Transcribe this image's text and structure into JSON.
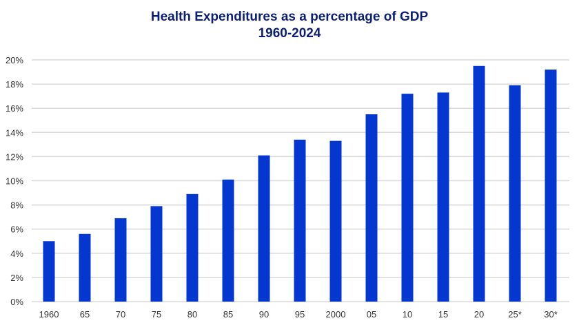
{
  "chart_data": {
    "type": "bar",
    "title": "Health Expenditures as a percentage of GDP",
    "subtitle": "1960-2024",
    "xlabel": "",
    "ylabel": "",
    "categories": [
      "1960",
      "65",
      "70",
      "75",
      "80",
      "85",
      "90",
      "95",
      "2000",
      "05",
      "10",
      "15",
      "20",
      "25*",
      "30*"
    ],
    "values": [
      5.0,
      5.6,
      6.9,
      7.9,
      8.9,
      10.1,
      12.1,
      13.4,
      13.3,
      15.5,
      17.2,
      17.3,
      19.5,
      17.9,
      19.2
    ],
    "ylim": [
      0,
      20
    ],
    "yticks": [
      "0%",
      "2%",
      "4%",
      "6%",
      "8%",
      "10%",
      "12%",
      "14%",
      "16%",
      "18%",
      "20%"
    ],
    "grid": true,
    "legend": "none",
    "colors": {
      "bar": "#0437cf",
      "title": "#0b1f73",
      "grid": "#d9d9d9",
      "axis_text": "#333333"
    }
  }
}
